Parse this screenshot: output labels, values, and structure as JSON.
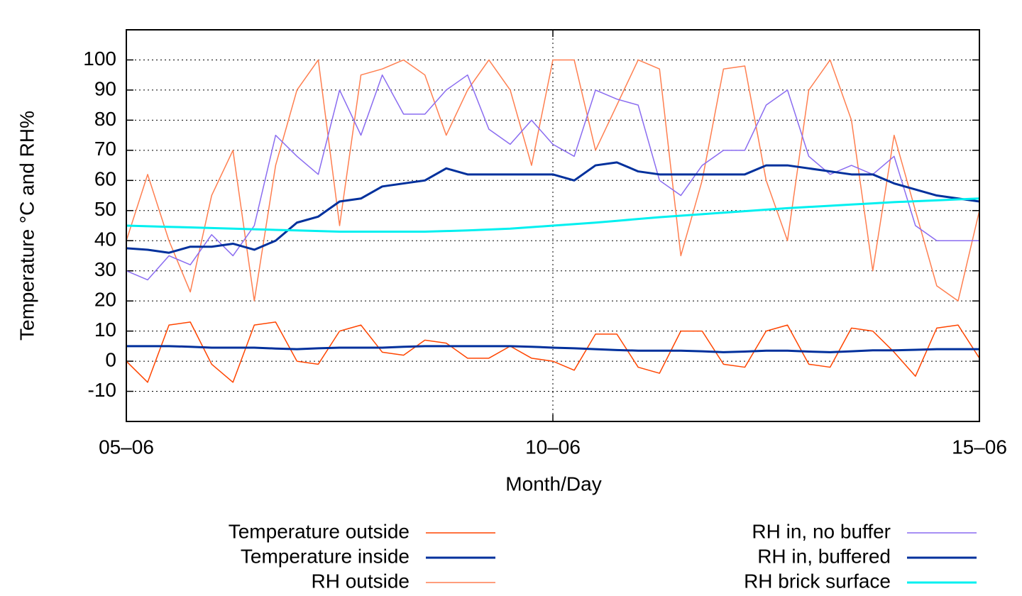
{
  "chart_data": {
    "type": "line",
    "xlabel": "Month/Day",
    "ylabel": "Temperature °C and RH%",
    "x": [
      5,
      5.25,
      5.5,
      5.75,
      6,
      6.25,
      6.5,
      6.75,
      7,
      7.25,
      7.5,
      7.75,
      8,
      8.25,
      8.5,
      8.75,
      9,
      9.25,
      9.5,
      9.75,
      10,
      10.25,
      10.5,
      10.75,
      11,
      11.25,
      11.5,
      11.75,
      12,
      12.25,
      12.5,
      12.75,
      13,
      13.25,
      13.5,
      13.75,
      14,
      14.25,
      14.5,
      14.75,
      15
    ],
    "xlim": [
      5,
      15
    ],
    "xticks": [
      {
        "value": 5,
        "label": "05–06"
      },
      {
        "value": 10,
        "label": "10–06"
      },
      {
        "value": 15,
        "label": "15–06"
      }
    ],
    "ylim": [
      -20,
      110
    ],
    "yticks": [
      -10,
      0,
      10,
      20,
      30,
      40,
      50,
      60,
      70,
      80,
      90,
      100
    ],
    "grid": true,
    "series": [
      {
        "name": "Temperature outside",
        "color": "#ff4500",
        "width": 1.5,
        "values": [
          0,
          -7,
          12,
          13,
          -1,
          -7,
          12,
          13,
          0,
          -1,
          10,
          12,
          3,
          2,
          7,
          6,
          1,
          1,
          5,
          1,
          0,
          -3,
          9,
          9,
          -2,
          -4,
          10,
          10,
          -1,
          -2,
          10,
          12,
          -1,
          -2,
          11,
          10,
          3,
          -5,
          11,
          12,
          1
        ]
      },
      {
        "name": "Temperature inside",
        "color": "#00309c",
        "width": 3,
        "values": [
          5,
          5,
          5,
          4.8,
          4.5,
          4.5,
          4.5,
          4.2,
          4,
          4.3,
          4.5,
          4.5,
          4.5,
          4.8,
          5,
          5,
          5,
          5,
          5,
          4.8,
          4.5,
          4.3,
          4,
          3.7,
          3.5,
          3.5,
          3.5,
          3.3,
          3,
          3.2,
          3.5,
          3.5,
          3.2,
          3,
          3.3,
          3.6,
          3.6,
          3.8,
          4,
          4,
          4
        ]
      },
      {
        "name": "RH outside",
        "color": "#ff7f50",
        "width": 1.5,
        "values": [
          40,
          62,
          40,
          23,
          55,
          70,
          20,
          65,
          90,
          100,
          45,
          95,
          97,
          100,
          95,
          75,
          90,
          100,
          90,
          65,
          100,
          100,
          70,
          85,
          100,
          97,
          35,
          60,
          97,
          98,
          60,
          40,
          90,
          100,
          80,
          30,
          75,
          50,
          25,
          20,
          50
        ]
      },
      {
        "name": "RH in, no buffer",
        "color": "#8a6cf0",
        "width": 1.5,
        "values": [
          30,
          27,
          35,
          32,
          42,
          35,
          45,
          75,
          68,
          62,
          90,
          75,
          95,
          82,
          82,
          90,
          95,
          77,
          72,
          80,
          72,
          68,
          90,
          87,
          85,
          60,
          55,
          65,
          70,
          70,
          85,
          90,
          68,
          62,
          65,
          62,
          68,
          45,
          40,
          40,
          40
        ]
      },
      {
        "name": "RH in, buffered",
        "color": "#00309c",
        "width": 3,
        "values": [
          37.5,
          37,
          36,
          38,
          38,
          39,
          37,
          40,
          46,
          48,
          53,
          54,
          58,
          59,
          60,
          64,
          62,
          62,
          62,
          62,
          62,
          60,
          65,
          66,
          63,
          62,
          62,
          62,
          62,
          62,
          65,
          65,
          64,
          63,
          62,
          62,
          59,
          57,
          55,
          54,
          53
        ]
      },
      {
        "name": "RH brick surface",
        "color": "#00f0f0",
        "width": 3,
        "values": [
          45,
          44.8,
          44.6,
          44.4,
          44.2,
          44,
          43.8,
          43.6,
          43.4,
          43.2,
          43,
          43,
          43,
          43,
          43,
          43.2,
          43.4,
          43.7,
          44,
          44.5,
          45,
          45.5,
          46,
          46.6,
          47.2,
          47.8,
          48.3,
          48.8,
          49.3,
          49.8,
          50.3,
          50.8,
          51.2,
          51.6,
          52,
          52.4,
          52.8,
          53.1,
          53.4,
          53.7,
          54
        ]
      }
    ]
  }
}
